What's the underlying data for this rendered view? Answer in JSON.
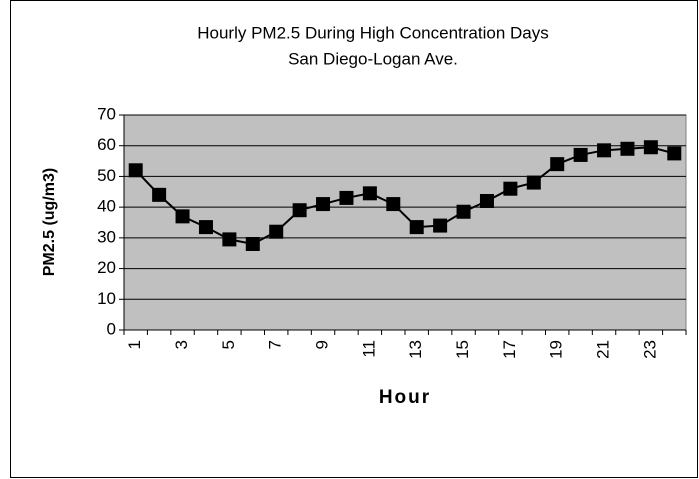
{
  "chart_data": {
    "type": "line",
    "title": "Hourly PM2.5 During High Concentration Days",
    "subtitle": "San Diego-Logan Ave.",
    "x_label": "Hour",
    "y_label": "PM2.5 (ug/m3)",
    "categories": [
      1,
      null,
      3,
      null,
      5,
      null,
      7,
      null,
      9,
      null,
      11,
      null,
      13,
      null,
      15,
      null,
      17,
      null,
      19,
      null,
      21,
      null,
      23,
      null
    ],
    "series": [
      {
        "color": "#000000",
        "values": [
          52,
          44,
          37,
          33.5,
          29.5,
          28,
          32,
          39,
          41,
          43,
          44.5,
          41,
          33.5,
          34,
          38.5,
          42,
          46,
          48,
          54,
          57,
          58.5,
          59,
          59.5,
          57.5
        ]
      }
    ],
    "ylim": [
      0,
      70
    ],
    "yticks": [
      0,
      10,
      20,
      30,
      40,
      50,
      60,
      70
    ],
    "grid": true,
    "plot_background": "#c0c0c0"
  }
}
